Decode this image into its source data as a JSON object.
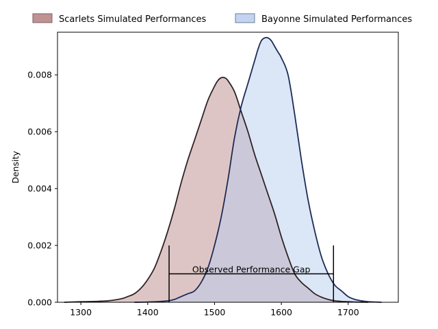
{
  "chart_data": {
    "type": "area",
    "title": "",
    "xlabel": "",
    "ylabel": "Density",
    "xlim": [
      1265,
      1775
    ],
    "ylim": [
      0,
      0.0095
    ],
    "x_ticks": [
      1300,
      1400,
      1500,
      1600,
      1700
    ],
    "y_ticks": [
      0.0,
      0.002,
      0.004,
      0.006,
      0.008
    ],
    "y_tick_labels": [
      "0.000",
      "0.002",
      "0.004",
      "0.006",
      "0.008"
    ],
    "grid": false,
    "legend_position": "top (outside, above plot)",
    "series": [
      {
        "name": "Scarlets Simulated Performances",
        "fill_color": "#b57f7f",
        "edge_color": "#2e2224",
        "x": [
          1275,
          1300,
          1320,
          1340,
          1360,
          1370,
          1380,
          1390,
          1400,
          1410,
          1420,
          1430,
          1440,
          1450,
          1460,
          1470,
          1480,
          1490,
          1500,
          1505,
          1510,
          1515,
          1520,
          1530,
          1540,
          1550,
          1560,
          1570,
          1580,
          1590,
          1600,
          1610,
          1620,
          1630,
          1640,
          1650,
          1660,
          1670,
          1680,
          1690,
          1700,
          1710,
          1720,
          1730
        ],
        "y": [
          0.0,
          2e-05,
          3e-05,
          5e-05,
          0.00012,
          0.0002,
          0.0003,
          0.0005,
          0.0008,
          0.0012,
          0.0018,
          0.0025,
          0.0033,
          0.0042,
          0.005,
          0.0057,
          0.0064,
          0.0071,
          0.0076,
          0.0078,
          0.0079,
          0.0079,
          0.0078,
          0.0074,
          0.0067,
          0.006,
          0.0052,
          0.0045,
          0.0038,
          0.0031,
          0.0023,
          0.0016,
          0.001,
          0.0007,
          0.0005,
          0.0003,
          0.00018,
          0.0001,
          5e-05,
          3e-05,
          2e-05,
          1e-05,
          5e-06,
          0.0
        ]
      },
      {
        "name": "Bayonne Simulated Performances",
        "fill_color": "#b7cdee",
        "edge_color": "#1c2a55",
        "x": [
          1380,
          1400,
          1420,
          1430,
          1440,
          1450,
          1460,
          1470,
          1480,
          1490,
          1500,
          1510,
          1520,
          1530,
          1540,
          1550,
          1560,
          1565,
          1570,
          1575,
          1580,
          1585,
          1590,
          1595,
          1600,
          1610,
          1620,
          1630,
          1640,
          1650,
          1660,
          1670,
          1680,
          1690,
          1700,
          1710,
          1720,
          1730,
          1740,
          1750
        ],
        "y": [
          0.0,
          1e-05,
          3e-05,
          5e-05,
          0.0001,
          0.0002,
          0.0003,
          0.0004,
          0.0007,
          0.0012,
          0.002,
          0.003,
          0.0043,
          0.0058,
          0.0069,
          0.0077,
          0.0085,
          0.0089,
          0.0092,
          0.0093,
          0.0093,
          0.0092,
          0.009,
          0.0088,
          0.0086,
          0.008,
          0.0066,
          0.005,
          0.0036,
          0.0025,
          0.0016,
          0.001,
          0.0006,
          0.0004,
          0.0002,
          0.0001,
          5e-05,
          2e-05,
          1e-05,
          0.0
        ]
      }
    ],
    "annotation": {
      "label": "Observed Performance Gap",
      "x_start": 1432,
      "x_end": 1678,
      "y_level": 0.001,
      "tick_top": 0.002
    }
  }
}
